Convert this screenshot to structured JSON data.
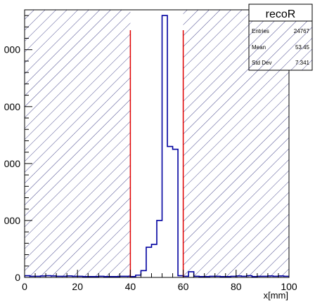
{
  "chart_data": {
    "type": "bar",
    "title": "",
    "xlabel": "x[mm]",
    "ylabel": "",
    "xlim": [
      0,
      100
    ],
    "ylim": [
      0,
      4700
    ],
    "x_ticks": [
      0,
      20,
      40,
      60,
      80,
      100
    ],
    "x_tick_labels": [
      "0",
      "20",
      "40",
      "60",
      "80",
      "100"
    ],
    "y_ticks": [
      0,
      1000,
      2000,
      3000,
      4000
    ],
    "y_tick_labels": [
      "0",
      "000",
      "000",
      "000",
      "000"
    ],
    "bin_width": 2,
    "bins_x": [
      0,
      2,
      4,
      6,
      8,
      10,
      12,
      14,
      16,
      18,
      20,
      22,
      24,
      26,
      28,
      30,
      32,
      34,
      36,
      38,
      40,
      42,
      44,
      46,
      48,
      50,
      52,
      54,
      56,
      58,
      60,
      62,
      64,
      66,
      68,
      70,
      72,
      74,
      76,
      78,
      80,
      82,
      84,
      86,
      88,
      90,
      92,
      94,
      96,
      98
    ],
    "bins_y": [
      30,
      20,
      20,
      25,
      30,
      25,
      20,
      20,
      25,
      20,
      20,
      15,
      15,
      15,
      20,
      15,
      15,
      15,
      20,
      20,
      15,
      40,
      120,
      530,
      580,
      1000,
      4600,
      2300,
      2250,
      30,
      20,
      100,
      20,
      15,
      15,
      20,
      20,
      15,
      15,
      20,
      25,
      20,
      30,
      15,
      20,
      20,
      25,
      20,
      25,
      20
    ],
    "line_color": "#0000a0",
    "cut_lines_x": [
      40,
      60
    ],
    "cut_line_color": "#e00000",
    "shaded_regions": [
      [
        0,
        40
      ],
      [
        60,
        100
      ]
    ],
    "hatch_color": "#000060",
    "stats_box": {
      "title": "recoR",
      "entries_label": "Entries",
      "entries_value": "24767",
      "mean_label": "Mean",
      "mean_value": "53.45",
      "stddev_label": "Std Dev",
      "stddev_value": "7.341"
    }
  }
}
